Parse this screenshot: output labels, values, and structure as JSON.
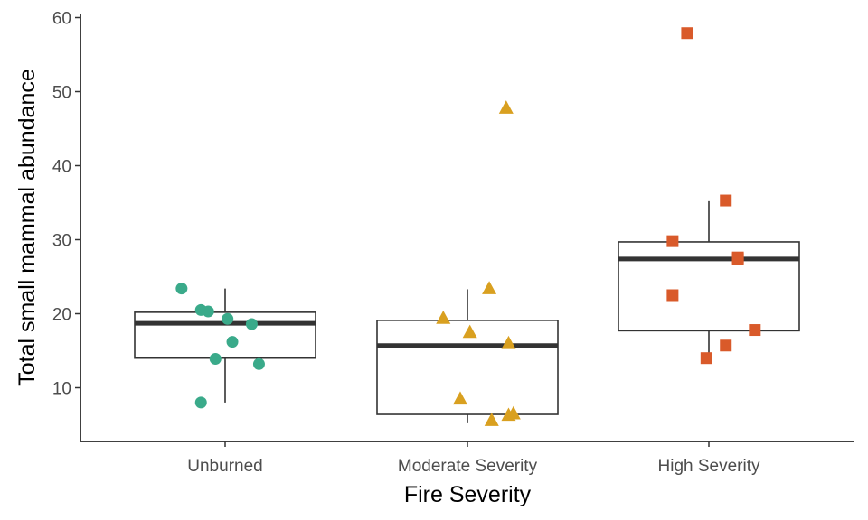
{
  "chart_data": {
    "type": "box",
    "xlabel": "Fire Severity",
    "ylabel": "Total small mammal abundance",
    "ylim": [
      3,
      61
    ],
    "yticks": [
      10,
      20,
      30,
      40,
      50,
      60
    ],
    "grid": false,
    "categories": [
      "Unburned",
      "Moderate Severity",
      "High Severity"
    ],
    "series": [
      {
        "category": "Unburned",
        "color": "#3aaa8a",
        "marker": "circle",
        "box": {
          "whisker_low": 8,
          "q1": 14,
          "median": 18.7,
          "q3": 20.2,
          "whisker_high": 23.4
        },
        "points": [
          {
            "jitter": -0.18,
            "y": 23.4
          },
          {
            "jitter": -0.1,
            "y": 20.5
          },
          {
            "jitter": -0.07,
            "y": 20.3
          },
          {
            "jitter": 0.01,
            "y": 19.3
          },
          {
            "jitter": 0.11,
            "y": 18.6
          },
          {
            "jitter": 0.03,
            "y": 16.2
          },
          {
            "jitter": -0.04,
            "y": 13.9
          },
          {
            "jitter": 0.14,
            "y": 13.2
          },
          {
            "jitter": -0.1,
            "y": 8.0
          }
        ]
      },
      {
        "category": "Moderate Severity",
        "color": "#d9a020",
        "marker": "triangle",
        "box": {
          "whisker_low": 5.2,
          "q1": 6.4,
          "median": 15.7,
          "q3": 19.1,
          "whisker_high": 23.3
        },
        "points": [
          {
            "jitter": 0.16,
            "y": 47.8
          },
          {
            "jitter": 0.09,
            "y": 23.4
          },
          {
            "jitter": -0.1,
            "y": 19.4
          },
          {
            "jitter": 0.01,
            "y": 17.5
          },
          {
            "jitter": 0.17,
            "y": 16.0
          },
          {
            "jitter": -0.03,
            "y": 8.5
          },
          {
            "jitter": 0.19,
            "y": 6.5
          },
          {
            "jitter": 0.17,
            "y": 6.3
          },
          {
            "jitter": 0.1,
            "y": 5.6
          }
        ]
      },
      {
        "category": "High Severity",
        "color": "#d95a2a",
        "marker": "square",
        "box": {
          "whisker_low": 14.0,
          "q1": 17.7,
          "median": 27.4,
          "q3": 29.7,
          "whisker_high": 35.2
        },
        "points": [
          {
            "jitter": -0.09,
            "y": 57.9
          },
          {
            "jitter": 0.07,
            "y": 35.3
          },
          {
            "jitter": -0.15,
            "y": 29.8
          },
          {
            "jitter": 0.12,
            "y": 27.6
          },
          {
            "jitter": 0.12,
            "y": 27.4
          },
          {
            "jitter": -0.15,
            "y": 22.5
          },
          {
            "jitter": 0.19,
            "y": 17.8
          },
          {
            "jitter": 0.07,
            "y": 15.7
          },
          {
            "jitter": -0.01,
            "y": 14.0
          }
        ]
      }
    ]
  }
}
